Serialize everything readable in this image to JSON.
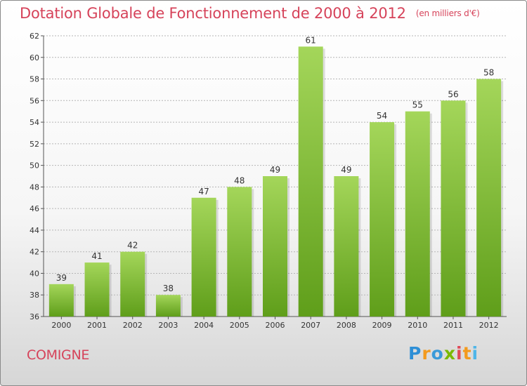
{
  "header": {
    "title": "Dotation Globale de Fonctionnement de 2000 à 2012",
    "subtitle": "(en milliers d'€)"
  },
  "commune": "COMIGNE",
  "logo": {
    "text": "Proxiti",
    "letter_colors": [
      "#2e8fd6",
      "#f39a1e",
      "#3a9ad9",
      "#7ab800",
      "#e04a57",
      "#f39a1e",
      "#4fb6e8"
    ]
  },
  "colors": {
    "bar_light": "#a4d65a",
    "bar_dark": "#5f9e1a",
    "grid": "#b5b5b5",
    "title": "#d6435a"
  },
  "chart_data": {
    "type": "bar",
    "categories": [
      "2000",
      "2001",
      "2002",
      "2003",
      "2004",
      "2005",
      "2006",
      "2007",
      "2008",
      "2009",
      "2010",
      "2011",
      "2012"
    ],
    "values": [
      39,
      41,
      42,
      38,
      47,
      48,
      49,
      61,
      49,
      54,
      55,
      56,
      58
    ],
    "ylim": [
      36,
      62
    ],
    "yticks": [
      36,
      38,
      40,
      42,
      44,
      46,
      48,
      50,
      52,
      54,
      56,
      58,
      60,
      62
    ],
    "grid": true,
    "data_labels": true
  }
}
